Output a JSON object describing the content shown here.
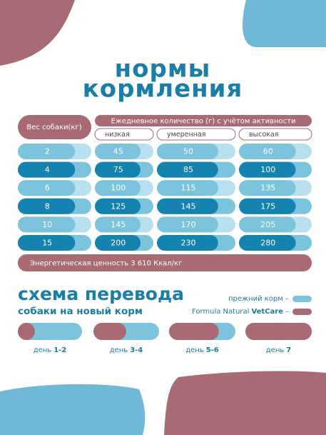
{
  "title": [
    "нормы",
    "кормления"
  ],
  "table": {
    "weight_header": "Вес собаки(кг)",
    "amount_header": "Ежедневное количество (г) с учётом активности",
    "levels": [
      "низкая",
      "умеренная",
      "высокая"
    ],
    "rows": [
      [
        2,
        45,
        50,
        60
      ],
      [
        4,
        75,
        85,
        100
      ],
      [
        6,
        100,
        115,
        135
      ],
      [
        8,
        125,
        145,
        175
      ],
      [
        10,
        145,
        170,
        205
      ],
      [
        15,
        200,
        230,
        280
      ]
    ],
    "energy": "Энергетическая ценность 3 610 Ккал/кг"
  },
  "transition": {
    "title": "схема перевода",
    "subtitle": "собаки на новый корм",
    "legend": [
      {
        "text": "прежний корм –"
      },
      {
        "text": "Formula Natural",
        "brand": "VetCare",
        "dash": "–"
      }
    ],
    "days": [
      {
        "label": "день",
        "number": "1-2"
      },
      {
        "label": "день",
        "number": "3-4"
      },
      {
        "label": "день",
        "number": "5-6"
      },
      {
        "label": "день",
        "number": "7"
      }
    ]
  }
}
